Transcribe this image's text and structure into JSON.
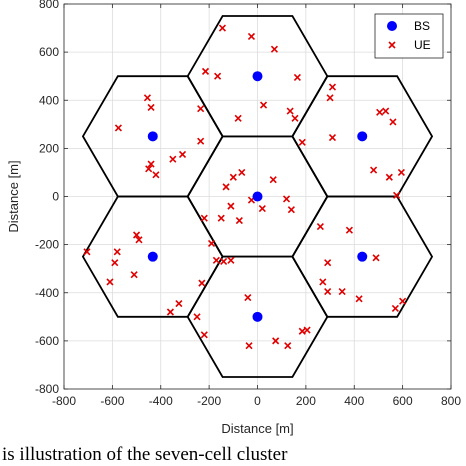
{
  "chart_data": {
    "type": "scatter",
    "xlabel": "Distance [m]",
    "ylabel": "Distance [m]",
    "xlim": [
      -800,
      800
    ],
    "ylim": [
      -800,
      800
    ],
    "xticks": [
      -800,
      -600,
      -400,
      -200,
      0,
      200,
      400,
      600,
      800
    ],
    "yticks": [
      -800,
      -600,
      -400,
      -200,
      0,
      200,
      400,
      600,
      800
    ],
    "grid": true,
    "legend_position": "top-right",
    "cell_radius_m": 288.7,
    "hexagon_centers": [
      [
        0,
        0
      ],
      [
        0,
        500
      ],
      [
        433,
        250
      ],
      [
        433,
        -250
      ],
      [
        0,
        -500
      ],
      [
        -433,
        -250
      ],
      [
        -433,
        250
      ]
    ],
    "series": [
      {
        "name": "BS",
        "marker": "filled-circle",
        "color": "#0000ff",
        "points": [
          [
            0,
            0
          ],
          [
            0,
            500
          ],
          [
            433,
            250
          ],
          [
            433,
            -250
          ],
          [
            0,
            -500
          ],
          [
            -433,
            -250
          ],
          [
            -433,
            250
          ]
        ]
      },
      {
        "name": "UE",
        "marker": "x",
        "color": "#e00000",
        "points": [
          [
            -145,
            700
          ],
          [
            -25,
            665
          ],
          [
            70,
            612
          ],
          [
            -215,
            520
          ],
          [
            -165,
            500
          ],
          [
            165,
            495
          ],
          [
            -235,
            365
          ],
          [
            -80,
            325
          ],
          [
            25,
            380
          ],
          [
            135,
            355
          ],
          [
            155,
            325
          ],
          [
            185,
            225
          ],
          [
            -455,
            410
          ],
          [
            -440,
            370
          ],
          [
            -575,
            285
          ],
          [
            -350,
            155
          ],
          [
            -310,
            175
          ],
          [
            -235,
            230
          ],
          [
            -450,
            115
          ],
          [
            -440,
            135
          ],
          [
            -420,
            90
          ],
          [
            310,
            455
          ],
          [
            300,
            410
          ],
          [
            310,
            245
          ],
          [
            505,
            350
          ],
          [
            530,
            355
          ],
          [
            560,
            310
          ],
          [
            480,
            110
          ],
          [
            545,
            80
          ],
          [
            595,
            100
          ],
          [
            575,
            5
          ],
          [
            -130,
            40
          ],
          [
            -100,
            80
          ],
          [
            -65,
            100
          ],
          [
            65,
            70
          ],
          [
            120,
            -10
          ],
          [
            -110,
            -40
          ],
          [
            -25,
            -15
          ],
          [
            -220,
            -90
          ],
          [
            -150,
            -90
          ],
          [
            -75,
            -100
          ],
          [
            20,
            -50
          ],
          [
            140,
            -55
          ],
          [
            -190,
            -195
          ],
          [
            -170,
            -265
          ],
          [
            -140,
            -270
          ],
          [
            -110,
            -265
          ],
          [
            -705,
            -230
          ],
          [
            -580,
            -230
          ],
          [
            -590,
            -275
          ],
          [
            -610,
            -355
          ],
          [
            -500,
            -160
          ],
          [
            -490,
            -180
          ],
          [
            -510,
            -325
          ],
          [
            -360,
            -480
          ],
          [
            -325,
            -445
          ],
          [
            260,
            -125
          ],
          [
            380,
            -140
          ],
          [
            290,
            -275
          ],
          [
            270,
            -355
          ],
          [
            290,
            -395
          ],
          [
            350,
            -395
          ],
          [
            420,
            -425
          ],
          [
            490,
            -255
          ],
          [
            570,
            -465
          ],
          [
            600,
            -435
          ],
          [
            -230,
            -360
          ],
          [
            -250,
            -500
          ],
          [
            -220,
            -575
          ],
          [
            -40,
            -420
          ],
          [
            -35,
            -620
          ],
          [
            75,
            -600
          ],
          [
            125,
            -620
          ],
          [
            185,
            -560
          ],
          [
            205,
            -555
          ]
        ]
      }
    ],
    "caption": "is illustration of the seven-cell cluster"
  }
}
